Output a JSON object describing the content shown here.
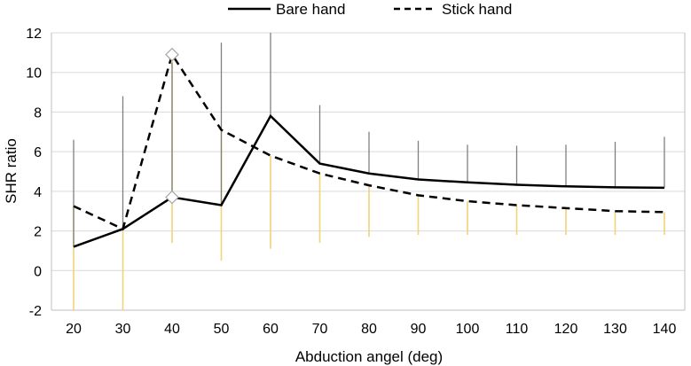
{
  "chart_data": {
    "type": "line",
    "title": "",
    "xlabel": "Abduction angel (deg)",
    "ylabel": "SHR ratio",
    "x": [
      20,
      30,
      40,
      50,
      60,
      70,
      80,
      90,
      100,
      110,
      120,
      130,
      140
    ],
    "x_ticks": [
      "20",
      "30",
      "40",
      "50",
      "60",
      "70",
      "80",
      "90",
      "100",
      "110",
      "120",
      "130",
      "140"
    ],
    "y_ticks": [
      "-2",
      "0",
      "2",
      "4",
      "6",
      "8",
      "10",
      "12"
    ],
    "ylim": [
      -2,
      12
    ],
    "grid": "horizontal",
    "legend": "top-center",
    "series": [
      {
        "name": "Bare hand",
        "style": "solid",
        "color": "#000000",
        "values": [
          1.2,
          2.1,
          3.7,
          3.3,
          7.8,
          5.4,
          4.9,
          4.6,
          4.45,
          4.33,
          4.25,
          4.2,
          4.18
        ],
        "error_upper": [
          6.6,
          8.8,
          10.5,
          11.5,
          12.0,
          8.35,
          7.0,
          6.55,
          6.35,
          6.3,
          6.35,
          6.5,
          6.75
        ],
        "marked_points": [
          40
        ]
      },
      {
        "name": "Stick hand",
        "style": "dashed",
        "color": "#000000",
        "values": [
          3.25,
          2.1,
          10.9,
          7.1,
          5.8,
          4.9,
          4.3,
          3.8,
          3.5,
          3.3,
          3.15,
          3.0,
          2.95
        ],
        "error_upper": [
          3.25,
          2.1,
          10.9,
          7.1,
          5.8,
          4.9,
          4.3,
          3.8,
          3.5,
          3.3,
          3.15,
          3.0,
          2.95
        ],
        "error_lower": [
          -2.0,
          -2.0,
          1.4,
          0.5,
          1.1,
          1.4,
          1.7,
          1.8,
          1.8,
          1.8,
          1.8,
          1.8,
          1.8
        ],
        "marked_points": [
          40
        ]
      }
    ],
    "colors": {
      "bare_error_bar": "#7f7f7f",
      "stick_error_bar": "#f2d27a",
      "gridline": "#d9d9d9",
      "axis_line": "#bfbfbf"
    }
  }
}
